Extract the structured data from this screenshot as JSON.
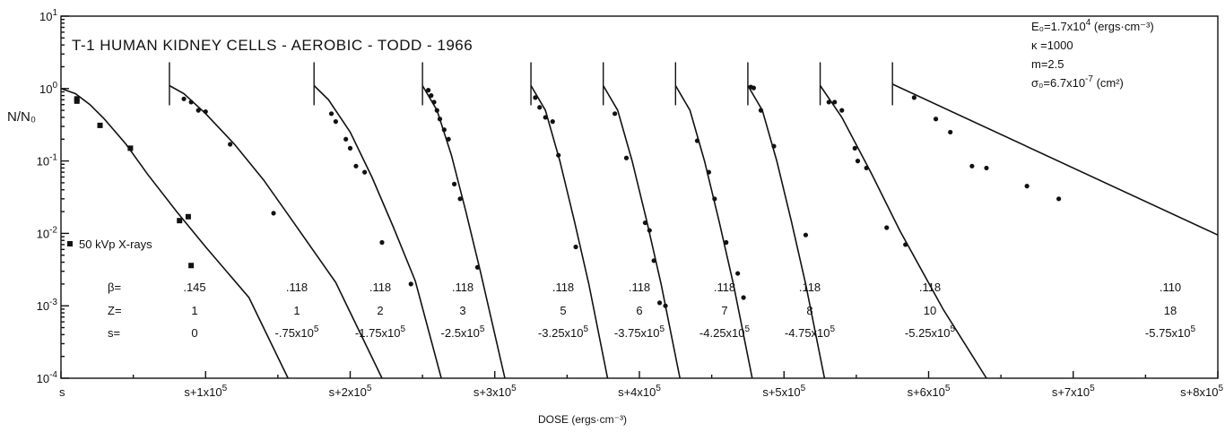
{
  "chart_data": {
    "type": "scatter",
    "title": "T-1 HUMAN KIDNEY CELLS - AEROBIC - TODD - 1966",
    "xlabel": "DOSE (ergs·cm⁻³)",
    "ylabel": "N/N₀",
    "yscale": "log",
    "ylim": [
      0.0001,
      10
    ],
    "xlim": [
      0,
      800000
    ],
    "y_ticks": [
      {
        "v": 10,
        "m": "10",
        "e": "1"
      },
      {
        "v": 1,
        "m": "10",
        "e": "0"
      },
      {
        "v": 0.1,
        "m": "10",
        "e": "-1"
      },
      {
        "v": 0.01,
        "m": "10",
        "e": "-2"
      },
      {
        "v": 0.001,
        "m": "10",
        "e": "-3"
      },
      {
        "v": 0.0001,
        "m": "10",
        "e": "-4"
      }
    ],
    "x_ticks": [
      {
        "v": 0,
        "m": "s",
        "e": ""
      },
      {
        "v": 100000,
        "m": "s+1x10",
        "e": "5"
      },
      {
        "v": 200000,
        "m": "s+2x10",
        "e": "5"
      },
      {
        "v": 300000,
        "m": "s+3x10",
        "e": "5"
      },
      {
        "v": 400000,
        "m": "s+4x10",
        "e": "5"
      },
      {
        "v": 500000,
        "m": "s+5x10",
        "e": "5"
      },
      {
        "v": 600000,
        "m": "s+6x10",
        "e": "5"
      },
      {
        "v": 700000,
        "m": "s+7x10",
        "e": "5"
      },
      {
        "v": 800000,
        "m": "s+8x10",
        "e": "5"
      }
    ],
    "constants": [
      {
        "text": "E₀=1.7x10",
        "sup": "4",
        "tail": " (ergs·cm⁻³)"
      },
      {
        "text": "κ =1000",
        "sup": "",
        "tail": ""
      },
      {
        "text": "m=2.5",
        "sup": "",
        "tail": ""
      },
      {
        "text": "σ₀=6.7x10",
        "sup": "-7",
        "tail": " (cm²)"
      }
    ],
    "row_labels": {
      "beta": "β=",
      "z": "Z=",
      "s": "s="
    },
    "legend": {
      "marker": "square",
      "label": "50 kVp  X-rays"
    },
    "series": [
      {
        "beta": ".145",
        "z": "1",
        "s": "0",
        "marker": "square",
        "bar_x": null,
        "curve": [
          [
            0,
            1.0
          ],
          [
            10000,
            0.85
          ],
          [
            20000,
            0.6
          ],
          [
            30000,
            0.38
          ],
          [
            45000,
            0.17
          ],
          [
            60000,
            0.065
          ],
          [
            80000,
            0.02
          ],
          [
            100000,
            0.0065
          ],
          [
            130000,
            0.0013
          ],
          [
            157000,
            0.0001
          ]
        ],
        "points": [
          [
            11000,
            0.72
          ],
          [
            11000,
            0.67
          ],
          [
            27000,
            0.31
          ],
          [
            48000,
            0.15
          ],
          [
            82000,
            0.015
          ],
          [
            88000,
            0.017
          ],
          [
            90000,
            0.0036
          ]
        ]
      },
      {
        "beta": ".118",
        "z": "1",
        "s": "-.75x10⁵",
        "marker": "circle",
        "bar_x": 75000,
        "curve": [
          [
            75000,
            1.1
          ],
          [
            85000,
            0.85
          ],
          [
            100000,
            0.45
          ],
          [
            120000,
            0.17
          ],
          [
            140000,
            0.055
          ],
          [
            160000,
            0.015
          ],
          [
            190000,
            0.0021
          ],
          [
            222000,
            0.0001
          ]
        ],
        "points": [
          [
            85000,
            0.72
          ],
          [
            90000,
            0.65
          ],
          [
            95000,
            0.5
          ],
          [
            100000,
            0.48
          ],
          [
            117000,
            0.17
          ],
          [
            147000,
            0.019
          ]
        ]
      },
      {
        "beta": ".118",
        "z": "2",
        "s": "-1.75x10⁵",
        "marker": "circle",
        "bar_x": 175000,
        "curve": [
          [
            175000,
            1.1
          ],
          [
            185000,
            0.7
          ],
          [
            200000,
            0.25
          ],
          [
            215000,
            0.06
          ],
          [
            230000,
            0.012
          ],
          [
            245000,
            0.0022
          ],
          [
            263000,
            0.0001
          ]
        ],
        "points": [
          [
            187000,
            0.45
          ],
          [
            190000,
            0.35
          ],
          [
            197000,
            0.2
          ],
          [
            200000,
            0.15
          ],
          [
            204000,
            0.085
          ],
          [
            210000,
            0.07
          ],
          [
            222000,
            0.0075
          ],
          [
            242000,
            0.002
          ]
        ]
      },
      {
        "beta": ".118",
        "z": "3",
        "s": "-2.5x10⁵",
        "marker": "circle",
        "bar_x": 250000,
        "curve": [
          [
            250000,
            1.1
          ],
          [
            260000,
            0.5
          ],
          [
            270000,
            0.12
          ],
          [
            280000,
            0.02
          ],
          [
            290000,
            0.003
          ],
          [
            307000,
            0.0001
          ]
        ],
        "points": [
          [
            254000,
            0.95
          ],
          [
            256000,
            0.8
          ],
          [
            258000,
            0.65
          ],
          [
            260000,
            0.5
          ],
          [
            262000,
            0.38
          ],
          [
            265000,
            0.27
          ],
          [
            268000,
            0.2
          ],
          [
            272000,
            0.048
          ],
          [
            276000,
            0.03
          ],
          [
            288000,
            0.0034
          ]
        ]
      },
      {
        "beta": ".118",
        "z": "5",
        "s": "-3.25x10⁵",
        "marker": "circle",
        "bar_x": 325000,
        "curve": [
          [
            325000,
            1.1
          ],
          [
            335000,
            0.5
          ],
          [
            345000,
            0.1
          ],
          [
            355000,
            0.015
          ],
          [
            365000,
            0.002
          ],
          [
            378000,
            0.0001
          ]
        ],
        "points": [
          [
            328000,
            0.75
          ],
          [
            331000,
            0.55
          ],
          [
            335000,
            0.4
          ],
          [
            340000,
            0.35
          ],
          [
            344000,
            0.12
          ],
          [
            356000,
            0.0065
          ]
        ]
      },
      {
        "beta": ".118",
        "z": "6",
        "s": "-3.75x10⁵",
        "marker": "circle",
        "bar_x": 375000,
        "curve": [
          [
            375000,
            1.1
          ],
          [
            385000,
            0.5
          ],
          [
            395000,
            0.1
          ],
          [
            405000,
            0.015
          ],
          [
            415000,
            0.002
          ],
          [
            428000,
            0.0001
          ]
        ],
        "points": [
          [
            383000,
            0.45
          ],
          [
            391000,
            0.11
          ],
          [
            404000,
            0.014
          ],
          [
            407000,
            0.011
          ],
          [
            410000,
            0.0042
          ],
          [
            414000,
            0.0011
          ],
          [
            418000,
            0.001
          ]
        ]
      },
      {
        "beta": ".118",
        "z": "7",
        "s": "-4.25x10⁵",
        "marker": "circle",
        "bar_x": 425000,
        "curve": [
          [
            425000,
            1.1
          ],
          [
            435000,
            0.5
          ],
          [
            445000,
            0.1
          ],
          [
            455000,
            0.015
          ],
          [
            465000,
            0.002
          ],
          [
            478000,
            0.0001
          ]
        ],
        "points": [
          [
            440000,
            0.19
          ],
          [
            448000,
            0.07
          ],
          [
            452000,
            0.03
          ],
          [
            460000,
            0.0075
          ],
          [
            468000,
            0.0028
          ],
          [
            472000,
            0.0013
          ]
        ]
      },
      {
        "beta": ".118",
        "z": "8",
        "s": "-4.75x10⁵",
        "marker": "circle",
        "bar_x": 475000,
        "curve": [
          [
            475000,
            1.1
          ],
          [
            485000,
            0.5
          ],
          [
            495000,
            0.1
          ],
          [
            505000,
            0.015
          ],
          [
            515000,
            0.002
          ],
          [
            528000,
            0.0001
          ]
        ],
        "points": [
          [
            477000,
            1.05
          ],
          [
            479000,
            1.02
          ],
          [
            484000,
            0.5
          ],
          [
            493000,
            0.16
          ],
          [
            515000,
            0.0095
          ]
        ]
      },
      {
        "beta": ".118",
        "z": "10",
        "s": "-5.25x10⁵",
        "marker": "circle",
        "bar_x": 525000,
        "curve": [
          [
            525000,
            1.1
          ],
          [
            540000,
            0.4
          ],
          [
            560000,
            0.07
          ],
          [
            580000,
            0.011
          ],
          [
            610000,
            0.0009
          ],
          [
            640000,
            0.0001
          ]
        ],
        "points": [
          [
            531000,
            0.65
          ],
          [
            535000,
            0.65
          ],
          [
            540000,
            0.5
          ],
          [
            549000,
            0.15
          ],
          [
            551000,
            0.1
          ],
          [
            557000,
            0.08
          ],
          [
            571000,
            0.012
          ],
          [
            584000,
            0.007
          ]
        ]
      },
      {
        "beta": ".110",
        "z": "18",
        "s": "-5.75x10⁵",
        "marker": "circle",
        "bar_x": 575000,
        "curve": [
          [
            575000,
            1.15
          ],
          [
            800000,
            0.0095
          ]
        ],
        "points": [
          [
            590000,
            0.75
          ],
          [
            605000,
            0.38
          ],
          [
            615000,
            0.25
          ],
          [
            630000,
            0.085
          ],
          [
            640000,
            0.08
          ],
          [
            668000,
            0.045
          ],
          [
            690000,
            0.03
          ]
        ]
      }
    ]
  }
}
